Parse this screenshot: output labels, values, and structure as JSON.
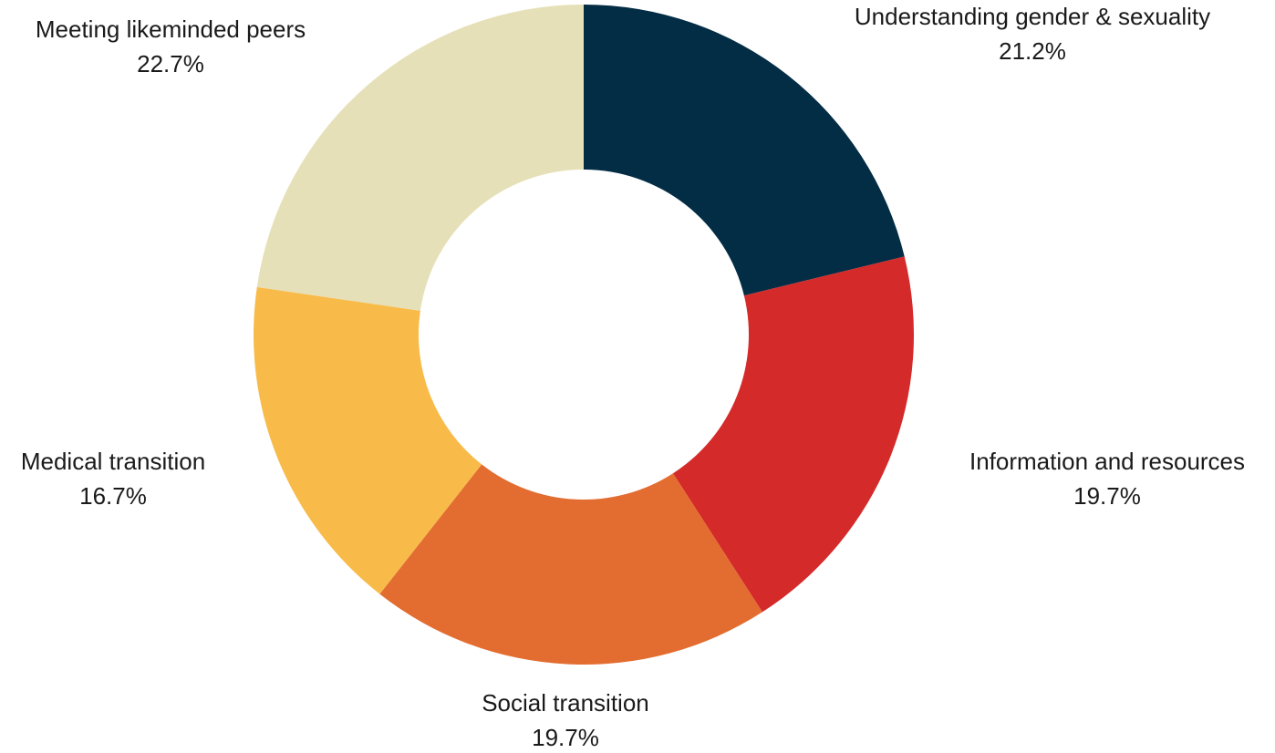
{
  "chart_data": {
    "type": "pie",
    "categories": [
      "Understanding gender & sexuality",
      "Information and resources",
      "Social transition",
      "Medical transition",
      "Meeting likeminded peers"
    ],
    "values": [
      21.2,
      19.7,
      19.7,
      16.7,
      22.7
    ],
    "value_labels": [
      "21.2%",
      "19.7%",
      "19.7%",
      "16.7%",
      "22.7%"
    ],
    "colors": [
      "#032c45",
      "#d42a2a",
      "#e36d30",
      "#f8bb4a",
      "#e6e0b8"
    ]
  }
}
